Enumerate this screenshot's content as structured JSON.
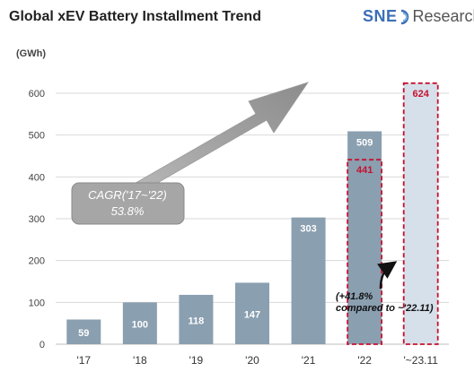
{
  "header": {
    "title": "Global xEV Battery Installment Trend",
    "logo_main": "SNE",
    "logo_sub": "Research"
  },
  "colors": {
    "bar": "#8a9fb0",
    "bar_light": "#d6e0ea",
    "highlight": "#c8102e",
    "grid": "#d9d9d9"
  },
  "chart_data": {
    "type": "bar",
    "unit_label": "(GWh)",
    "categories": [
      "'17",
      "'18",
      "'19",
      "'20",
      "'21",
      "'22",
      "'~23.11"
    ],
    "values": [
      59,
      100,
      118,
      147,
      303,
      509,
      624
    ],
    "highlighted_values": [
      {
        "category": "'22",
        "value": 441
      },
      {
        "category": "'~23.11",
        "value": 624
      }
    ],
    "yticks": [
      0,
      100,
      200,
      300,
      400,
      500,
      600
    ],
    "ylim": [
      0,
      650
    ],
    "grid": true,
    "annotations": {
      "cagr_line1": "CAGR('17~'22)",
      "cagr_line2": "53.8%",
      "growth_line1": "(+41.8%",
      "growth_line2": "compared to ~'22.11)"
    }
  }
}
